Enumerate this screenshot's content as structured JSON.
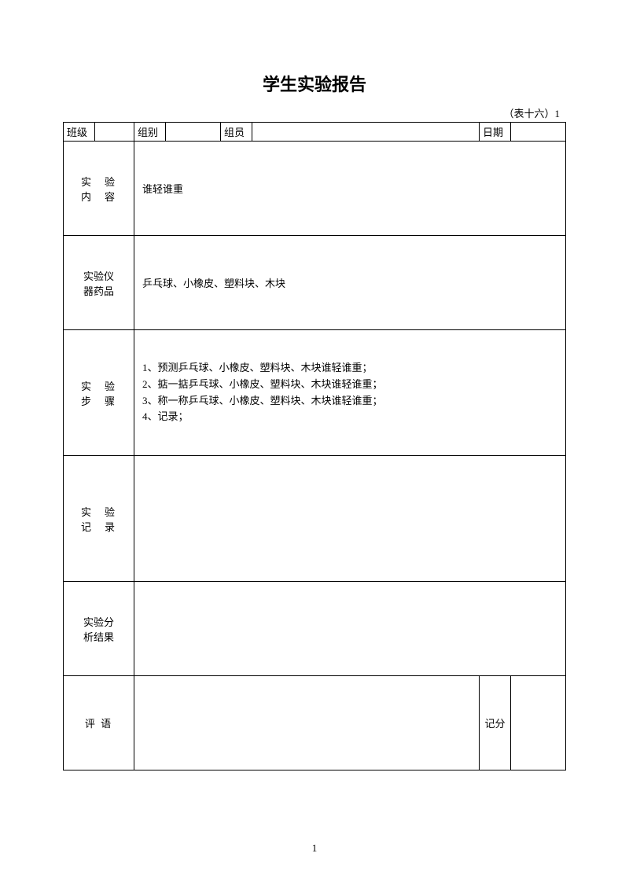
{
  "title": "学生实验报告",
  "subtitle": "（表十六）1",
  "header": {
    "class_label": "班级",
    "class_value": "",
    "group_label": "组别",
    "group_value": "",
    "member_label": "组员",
    "member_value": "",
    "date_label": "日期",
    "date_value": ""
  },
  "sections": {
    "content": {
      "label_line1": "实　验",
      "label_line2": "内　容",
      "value": "谁轻谁重"
    },
    "equipment": {
      "label_line1": "实验仪",
      "label_line2": "器药品",
      "value": "乒乓球、小橡皮、塑料块、木块"
    },
    "steps": {
      "label_line1": "实　验",
      "label_line2": "步　骤",
      "line1": "1、预测乒乓球、小橡皮、塑料块、木块谁轻谁重；",
      "line2": "2、掂一掂乒乓球、小橡皮、塑料块、木块谁轻谁重；",
      "line3": "3、称一称乒乓球、小橡皮、塑料块、木块谁轻谁重；",
      "line4": "4、记录；"
    },
    "record": {
      "label_line1": "实　验",
      "label_line2": "记　录",
      "value": ""
    },
    "analysis": {
      "label_line1": "实验分",
      "label_line2": "析结果",
      "value": ""
    },
    "comment": {
      "label": "评  语",
      "value": "",
      "score_label": "记分",
      "score_value": ""
    }
  },
  "page_number": "1",
  "colors": {
    "background": "#ffffff",
    "border": "#000000",
    "text": "#000000"
  }
}
